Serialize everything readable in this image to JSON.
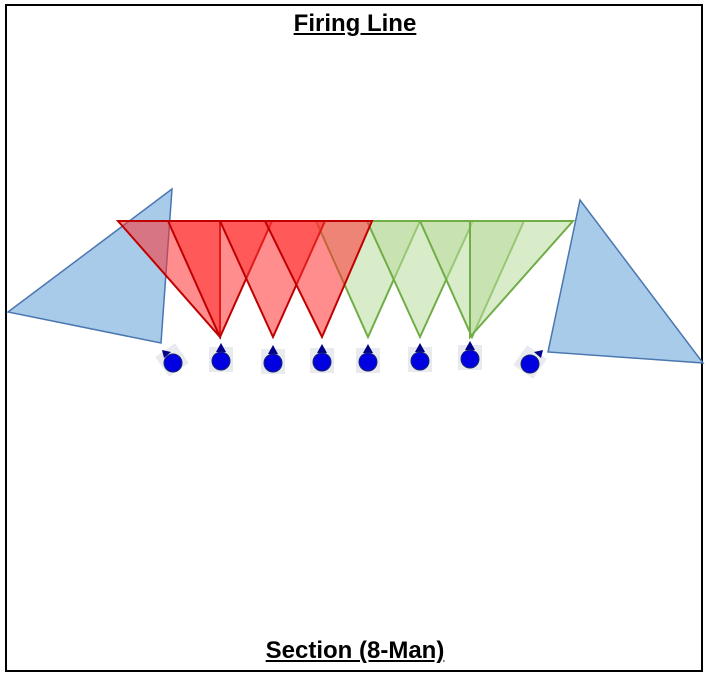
{
  "diagram": {
    "title": "Firing Line",
    "caption": "Section (8-Man)",
    "soldier_count": 8,
    "colors": {
      "border": "#000000",
      "flank_sector_fill": "#a9cbea",
      "flank_sector_stroke": "#4a77b0",
      "left_fire_fill": "#ff3030",
      "left_fire_stroke": "#c00000",
      "right_fire_fill": "#b9dc9c",
      "right_fire_stroke": "#70ad47",
      "soldier_fill": "#0000e0",
      "soldier_marker": "#00008b"
    },
    "icons": {
      "soldier": "soldier-circle-icon",
      "direction": "direction-triangle-icon"
    }
  }
}
